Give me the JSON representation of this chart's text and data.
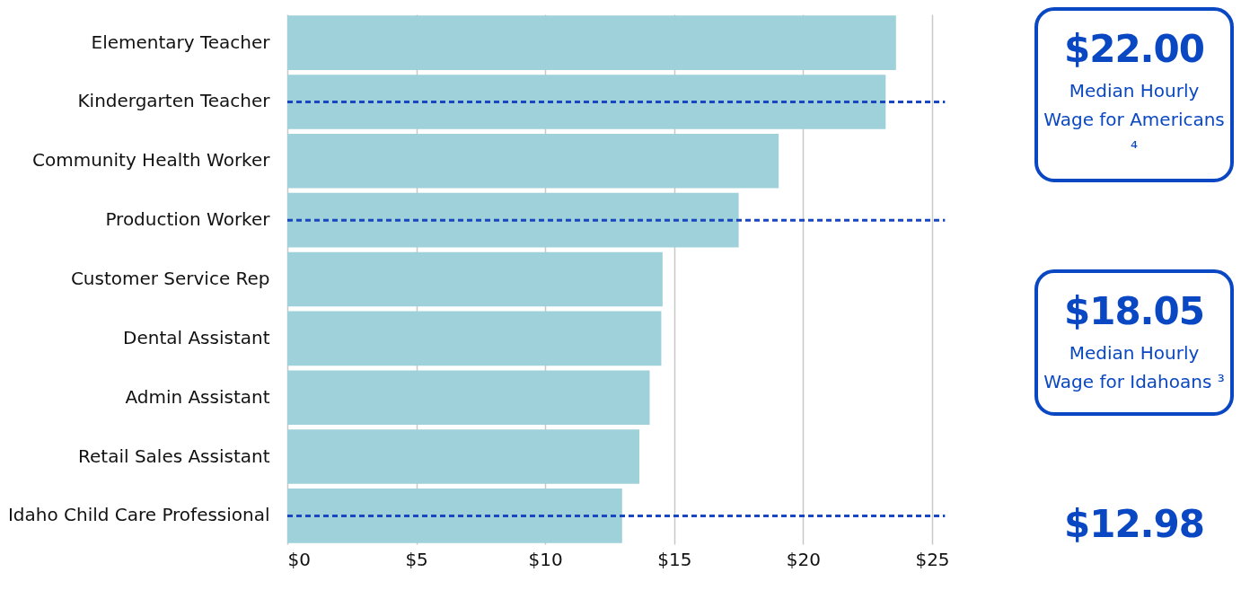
{
  "chart_data": {
    "type": "bar",
    "orientation": "horizontal",
    "categories": [
      "Elementary Teacher",
      "Kindergarten Teacher",
      "Community Health Worker",
      "Production Worker",
      "Customer Service Rep",
      "Dental Assistant",
      "Admin Assistant",
      "Retail Sales Assistant",
      "Idaho Child Care Professional"
    ],
    "values": [
      23.6,
      23.2,
      19.05,
      17.5,
      14.55,
      14.5,
      14.05,
      13.65,
      12.98
    ],
    "color": "#9fd1da",
    "xlim": [
      0,
      25.5
    ],
    "xticks": [
      {
        "value": 0,
        "label": "$0"
      },
      {
        "value": 5,
        "label": "$5"
      },
      {
        "value": 10,
        "label": "$10"
      },
      {
        "value": 15,
        "label": "$15"
      },
      {
        "value": 20,
        "label": "$20"
      },
      {
        "value": 25,
        "label": "$25"
      }
    ],
    "grid": "x",
    "ref_lines": [
      {
        "axis": "y",
        "value": "Kindergarten Teacher",
        "label": "$22.00",
        "color": "#1a47bd",
        "line_style": "dashed"
      },
      {
        "axis": "y",
        "value": "Production Worker",
        "label": "$18.05",
        "color": "#1a47bd",
        "line_style": "dashed"
      },
      {
        "axis": "y",
        "value": "Idaho Child Care Professional",
        "label": "$12.98",
        "color": "#1a47bd",
        "line_style": "dashed"
      }
    ],
    "annotations": [
      "Median Hourly Wage for Americans ⁴",
      "Median Hourly Wage for Idahoans ³"
    ]
  }
}
